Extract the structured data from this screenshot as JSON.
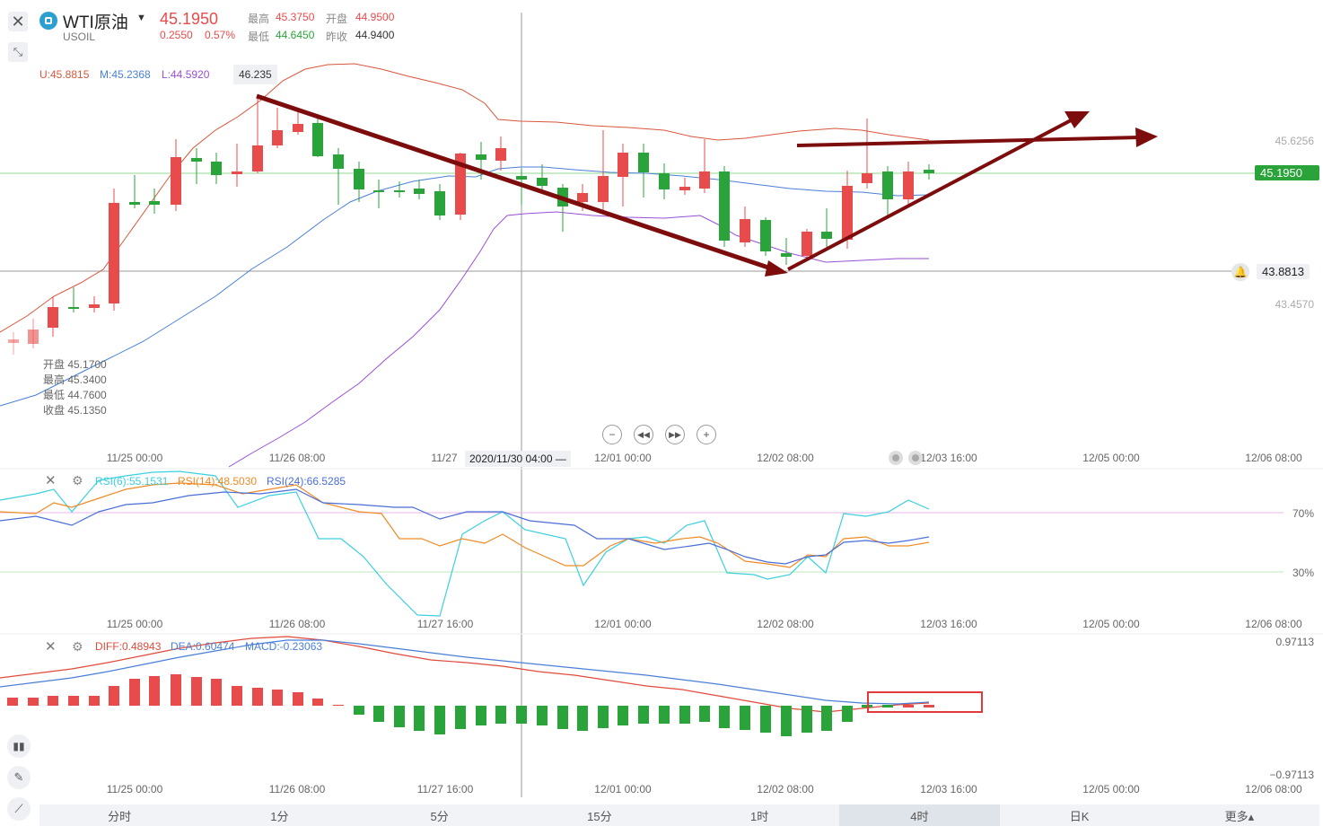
{
  "header": {
    "name": "WTI原油",
    "code": "USOIL",
    "price": "45.1950",
    "change": "0.2550",
    "change_pct": "0.57%",
    "high_label": "最高",
    "high": "45.3750",
    "open_label": "开盘",
    "open": "44.9500",
    "low_label": "最低",
    "low": "44.6450",
    "prev_close_label": "昨收",
    "prev_close": "44.9400"
  },
  "boll": {
    "u": "U:45.8815",
    "m": "M:45.2368",
    "l": "L:44.5920"
  },
  "peak_label": "46.235",
  "ohlc": {
    "open": "开盘 45.1700",
    "high": "最高 45.3400",
    "low": "最低 44.7600",
    "close": "收盘 45.1350"
  },
  "price_axis": {
    "top": "45.6256",
    "current": "45.1950",
    "alert": "43.8813",
    "bottom": "43.4570"
  },
  "time_axis": {
    "main": [
      "11/25 00:00",
      "11/26 08:00",
      "11/27",
      "12/01 00:00",
      "12/02 08:00",
      "12/03 16:00",
      "12/05 00:00",
      "12/06 08:00"
    ],
    "crosshair": "2020/11/30 04:00 —",
    "sub": [
      "11/25 00:00",
      "11/26 08:00",
      "11/27 16:00",
      "12/01 00:00",
      "12/02 08:00",
      "12/03 16:00",
      "12/05 00:00",
      "12/06 08:00"
    ]
  },
  "rsi": {
    "r6": "RSI(6):55.1531",
    "r14": "RSI(14):48.5030",
    "r24": "RSI(24):66.5285",
    "level_high": "70%",
    "level_low": "30%"
  },
  "macd": {
    "diff": "DIFF:0.48943",
    "dea": "DEA:0.60474",
    "macd": "MACD:-0.23063",
    "top": "0.97113",
    "bottom": "−0.97113"
  },
  "timeframes": [
    "分时",
    "1分",
    "5分",
    "15分",
    "1时",
    "4时",
    "日K",
    "更多▴"
  ],
  "active_timeframe": "4时",
  "colors": {
    "up": "#e84b4b",
    "down": "#2aa33a",
    "upper_band": "#d9553b",
    "mid_band": "#4a7fd8",
    "lower_band": "#9a4fd8",
    "annotation": "#7d0c0c",
    "rsi6": "#3ccfe0",
    "rsi14": "#f08a24",
    "rsi24": "#4a6ed8"
  },
  "icons": [
    "close-icon",
    "minimize-icon",
    "dropdown-icon",
    "zoom-out-icon",
    "rewind-icon",
    "forward-icon",
    "zoom-in-icon",
    "bell-icon",
    "settings-icon",
    "indicator-icon",
    "pencil-icon",
    "line-tool-icon"
  ]
}
